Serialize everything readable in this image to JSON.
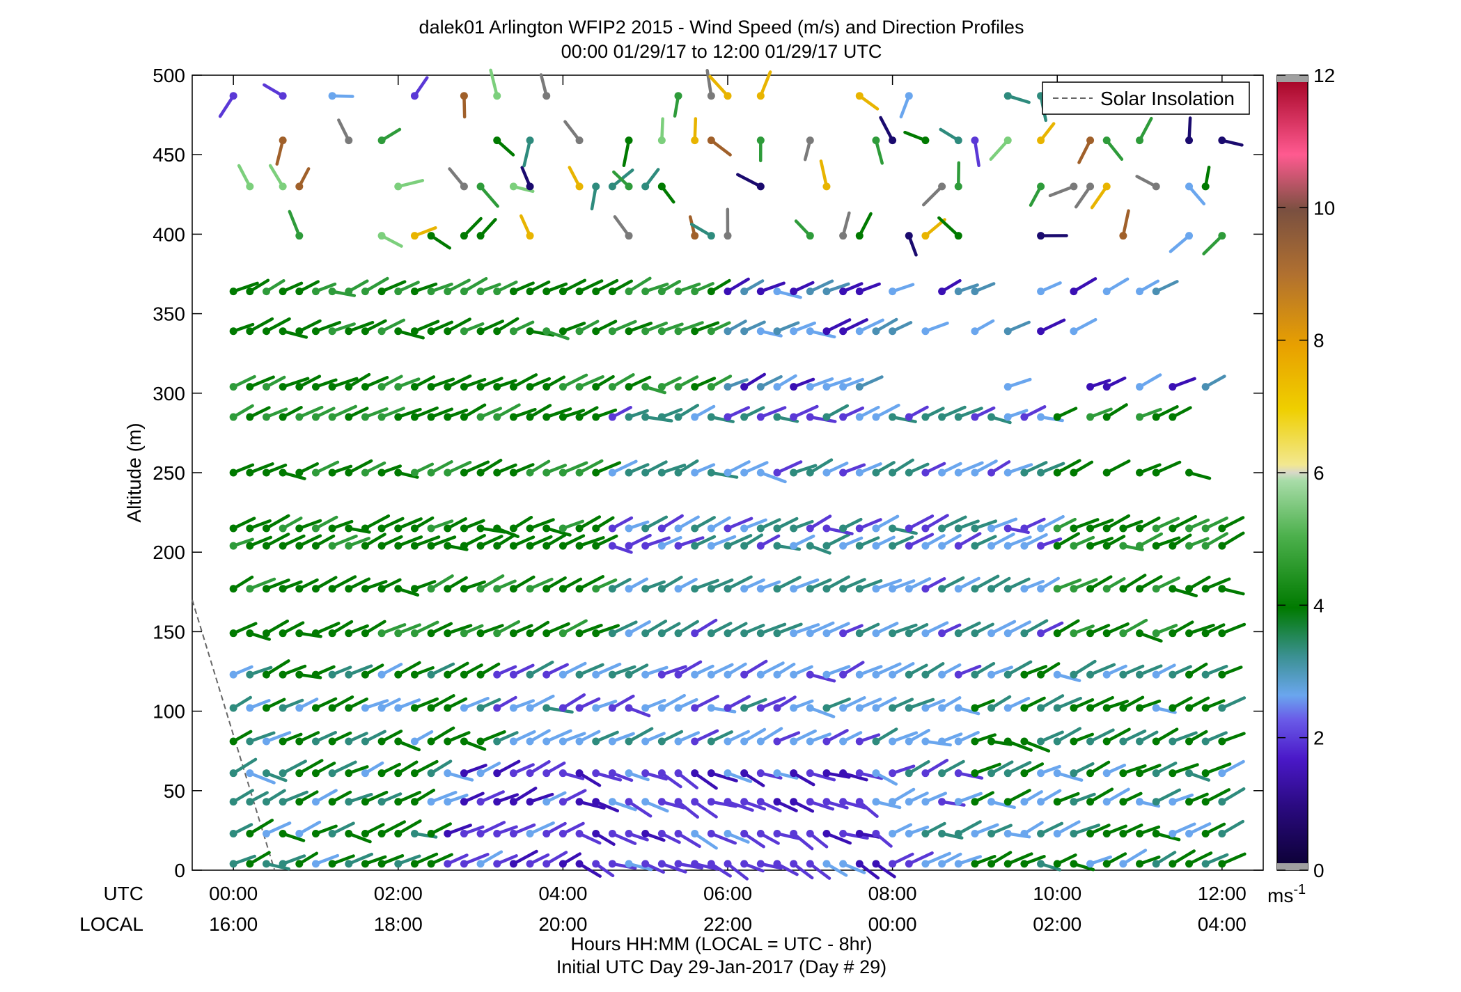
{
  "chart_data": {
    "type": "wind-barb-profile",
    "title": "dalek01 Arlington WFIP2 2015 - Wind Speed (m/s) and Direction Profiles",
    "subtitle": "00:00 01/29/17 to 12:00 01/29/17  UTC",
    "ylabel": "Altitude (m)",
    "xlabel": "Hours HH:MM  (LOCAL = UTC - 8hr)",
    "xlabel2": "Initial UTC Day 29-Jan-2017 (Day # 29)",
    "xrow_labels": [
      "UTC",
      "LOCAL"
    ],
    "utc_ticks": [
      "00:00",
      "02:00",
      "04:00",
      "06:00",
      "08:00",
      "10:00",
      "12:00"
    ],
    "local_ticks": [
      "16:00",
      "18:00",
      "20:00",
      "22:00",
      "00:00",
      "02:00",
      "04:00"
    ],
    "x_hours": [
      0,
      2,
      4,
      6,
      8,
      10,
      12
    ],
    "xlim_hours": [
      -0.5,
      12.5
    ],
    "ylim": [
      0,
      500
    ],
    "y_ticks": [
      0,
      50,
      100,
      150,
      200,
      250,
      300,
      350,
      400,
      450,
      500
    ],
    "altitude_levels": [
      4,
      23,
      43,
      61,
      81,
      102,
      123,
      149,
      177,
      204,
      215,
      250,
      285,
      304,
      339,
      364,
      399,
      430,
      459,
      487
    ],
    "legend": {
      "label": "Solar Insolation",
      "position": "top-right"
    },
    "solar_insolation_line": [
      [
        -0.5,
        170
      ],
      [
        0.5,
        0
      ]
    ],
    "colorbar": {
      "unit": "ms",
      "unit_exp": "-1",
      "range": [
        0,
        12
      ],
      "ticks": [
        0,
        2,
        4,
        6,
        8,
        10,
        12
      ]
    },
    "colors": {
      "dark_green": "#007a00",
      "mid_green": "#2e9b3a",
      "light_green": "#7ccf7c",
      "teal": "#2e8b7d",
      "steel_blue": "#4a8fb3",
      "light_blue": "#6aa6ee",
      "violet": "#5a38d6",
      "indigo": "#3a0fb4",
      "navy": "#1a0a6e",
      "gold": "#e8b400",
      "grey": "#7a7a7a",
      "brown": "#a0602a"
    }
  }
}
